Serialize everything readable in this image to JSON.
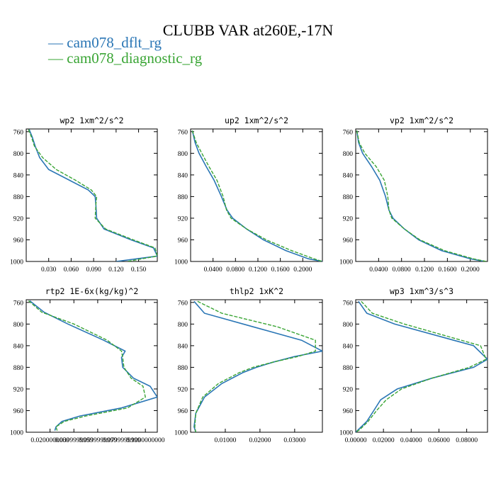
{
  "title": "CLUBB VAR at260E,-17N",
  "legend": [
    {
      "marker": "—",
      "label": "cam078_dflt_rg",
      "color": "#2a76b5"
    },
    {
      "marker": "—",
      "label": "cam078_diagnostic_rg",
      "color": "#3aa535"
    }
  ],
  "chart_data": [
    {
      "type": "line",
      "title": "wp2  1xm^2/s^2",
      "xlim": [
        0.0,
        0.175
      ],
      "ylim": [
        1000,
        755
      ],
      "xticks": [
        0.03,
        0.06,
        0.09,
        0.12,
        0.15
      ],
      "xticklabels": [
        "0.030",
        "0.060",
        "0.090",
        "0.120",
        "0.150"
      ],
      "yticks": [
        760,
        800,
        840,
        880,
        920,
        960,
        1000
      ],
      "yticklabels": [
        "760",
        "800",
        "840",
        "880",
        "920",
        "960",
        "1000"
      ],
      "y": [
        756,
        770,
        787,
        808,
        830,
        850,
        868,
        880,
        895,
        920,
        940,
        960,
        975,
        990,
        1000
      ],
      "series": [
        {
          "name": "cam078_dflt_rg",
          "x": [
            0.004,
            0.008,
            0.012,
            0.018,
            0.03,
            0.058,
            0.083,
            0.092,
            0.093,
            0.094,
            0.104,
            0.14,
            0.17,
            0.175,
            0.12
          ]
        },
        {
          "name": "cam078_diagnostic_rg",
          "x": [
            0.003,
            0.007,
            0.011,
            0.022,
            0.04,
            0.066,
            0.087,
            0.094,
            0.093,
            0.092,
            0.106,
            0.143,
            0.172,
            0.175,
            0.135
          ]
        }
      ]
    },
    {
      "type": "line",
      "title": "up2  1xm^2/s^2",
      "xlim": [
        0.0,
        0.235
      ],
      "ylim": [
        1000,
        755
      ],
      "xticks": [
        0.04,
        0.08,
        0.12,
        0.16,
        0.2
      ],
      "xticklabels": [
        "0.0400",
        "0.0800",
        "0.1200",
        "0.1600",
        "0.2000"
      ],
      "yticks": [
        760,
        800,
        840,
        880,
        920,
        960,
        1000
      ],
      "yticklabels": [
        "760",
        "800",
        "840",
        "880",
        "920",
        "960",
        "1000"
      ],
      "y": [
        758,
        780,
        800,
        825,
        850,
        880,
        905,
        920,
        940,
        960,
        980,
        995,
        1000
      ],
      "series": [
        {
          "name": "cam078_dflt_rg",
          "x": [
            0.003,
            0.008,
            0.015,
            0.028,
            0.042,
            0.055,
            0.065,
            0.075,
            0.1,
            0.13,
            0.17,
            0.21,
            0.235
          ]
        },
        {
          "name": "cam078_diagnostic_rg",
          "x": [
            0.003,
            0.01,
            0.02,
            0.033,
            0.047,
            0.058,
            0.064,
            0.072,
            0.1,
            0.135,
            0.18,
            0.22,
            0.235
          ]
        }
      ]
    },
    {
      "type": "line",
      "title": "vp2  1xm^2/s^2",
      "xlim": [
        0.0,
        0.23
      ],
      "ylim": [
        1000,
        755
      ],
      "xticks": [
        0.04,
        0.08,
        0.12,
        0.16,
        0.2
      ],
      "xticklabels": [
        "0.0400",
        "0.0800",
        "0.1200",
        "0.1600",
        "0.2000"
      ],
      "yticks": [
        760,
        800,
        840,
        880,
        920,
        960,
        1000
      ],
      "yticklabels": [
        "760",
        "800",
        "840",
        "880",
        "920",
        "960",
        "1000"
      ],
      "y": [
        758,
        780,
        800,
        825,
        850,
        880,
        905,
        920,
        940,
        960,
        980,
        995,
        1000
      ],
      "series": [
        {
          "name": "cam078_dflt_rg",
          "x": [
            0.002,
            0.005,
            0.012,
            0.028,
            0.042,
            0.052,
            0.058,
            0.065,
            0.085,
            0.11,
            0.15,
            0.2,
            0.225
          ]
        },
        {
          "name": "cam078_diagnostic_rg",
          "x": [
            0.002,
            0.006,
            0.016,
            0.036,
            0.05,
            0.056,
            0.058,
            0.063,
            0.085,
            0.112,
            0.155,
            0.205,
            0.228
          ]
        }
      ]
    },
    {
      "type": "line",
      "title": "rtp2  1E-6x(kg/kg)^2",
      "xlim": [
        0.0,
        0.11
      ],
      "ylim": [
        1000,
        755
      ],
      "xticks": [
        0.02,
        0.04,
        0.06,
        0.08,
        0.1
      ],
      "xticklabels": [
        "0.0200000000",
        "0.0399999999",
        "0.0599999999",
        "0.0799999999",
        "0.1000000000"
      ],
      "yticks": [
        760,
        800,
        840,
        880,
        920,
        960,
        1000
      ],
      "yticklabels": [
        "760",
        "800",
        "840",
        "880",
        "920",
        "960",
        "1000"
      ],
      "y": [
        757,
        778,
        800,
        830,
        850,
        862,
        880,
        900,
        915,
        935,
        955,
        970,
        980,
        990,
        997
      ],
      "series": [
        {
          "name": "cam078_dflt_rg",
          "x": [
            0.003,
            0.015,
            0.035,
            0.065,
            0.083,
            0.08,
            0.081,
            0.09,
            0.104,
            0.11,
            0.08,
            0.045,
            0.03,
            0.025,
            0.024
          ]
        },
        {
          "name": "cam078_diagnostic_rg",
          "x": [
            0.002,
            0.013,
            0.04,
            0.068,
            0.08,
            0.081,
            0.082,
            0.088,
            0.098,
            0.1,
            0.085,
            0.05,
            0.032,
            0.025,
            0.026
          ]
        }
      ]
    },
    {
      "type": "line",
      "title": "thlp2  1xK^2",
      "xlim": [
        0.0,
        0.038
      ],
      "ylim": [
        1000,
        755
      ],
      "xticks": [
        0.01,
        0.02,
        0.03
      ],
      "xticklabels": [
        "0.01000",
        "0.02000",
        "0.03000"
      ],
      "yticks": [
        760,
        800,
        840,
        880,
        920,
        960,
        1000
      ],
      "yticklabels": [
        "760",
        "800",
        "840",
        "880",
        "920",
        "960",
        "1000"
      ],
      "y": [
        758,
        780,
        805,
        830,
        850,
        860,
        870,
        880,
        890,
        910,
        935,
        965,
        990,
        1000
      ],
      "series": [
        {
          "name": "cam078_dflt_rg",
          "x": [
            0.001,
            0.004,
            0.018,
            0.032,
            0.038,
            0.03,
            0.024,
            0.019,
            0.015,
            0.009,
            0.004,
            0.0015,
            0.001,
            0.0015
          ]
        },
        {
          "name": "cam078_diagnostic_rg",
          "x": [
            0.002,
            0.009,
            0.025,
            0.036,
            0.036,
            0.031,
            0.024,
            0.018,
            0.014,
            0.008,
            0.0035,
            0.0015,
            0.0012,
            0.0015
          ]
        }
      ]
    },
    {
      "type": "line",
      "title": "wp3  1xm^3/s^3",
      "xlim": [
        0.0,
        0.095
      ],
      "ylim": [
        1000,
        755
      ],
      "xticks": [
        0.0,
        0.02,
        0.04,
        0.06,
        0.08
      ],
      "xticklabels": [
        "0.00000",
        "0.02000",
        "0.04000",
        "0.06000",
        "0.08000"
      ],
      "yticks": [
        760,
        800,
        840,
        880,
        920,
        960,
        1000
      ],
      "yticklabels": [
        "760",
        "800",
        "840",
        "880",
        "920",
        "960",
        "1000"
      ],
      "y": [
        758,
        780,
        800,
        840,
        865,
        880,
        900,
        920,
        940,
        960,
        980,
        995,
        1000
      ],
      "series": [
        {
          "name": "cam078_dflt_rg",
          "x": [
            0.002,
            0.008,
            0.028,
            0.085,
            0.095,
            0.085,
            0.055,
            0.03,
            0.018,
            0.013,
            0.008,
            0.002,
            0.0
          ]
        },
        {
          "name": "cam078_diagnostic_rg",
          "x": [
            0.004,
            0.012,
            0.035,
            0.09,
            0.094,
            0.082,
            0.055,
            0.033,
            0.022,
            0.015,
            0.009,
            0.003,
            0.0
          ]
        }
      ]
    }
  ]
}
